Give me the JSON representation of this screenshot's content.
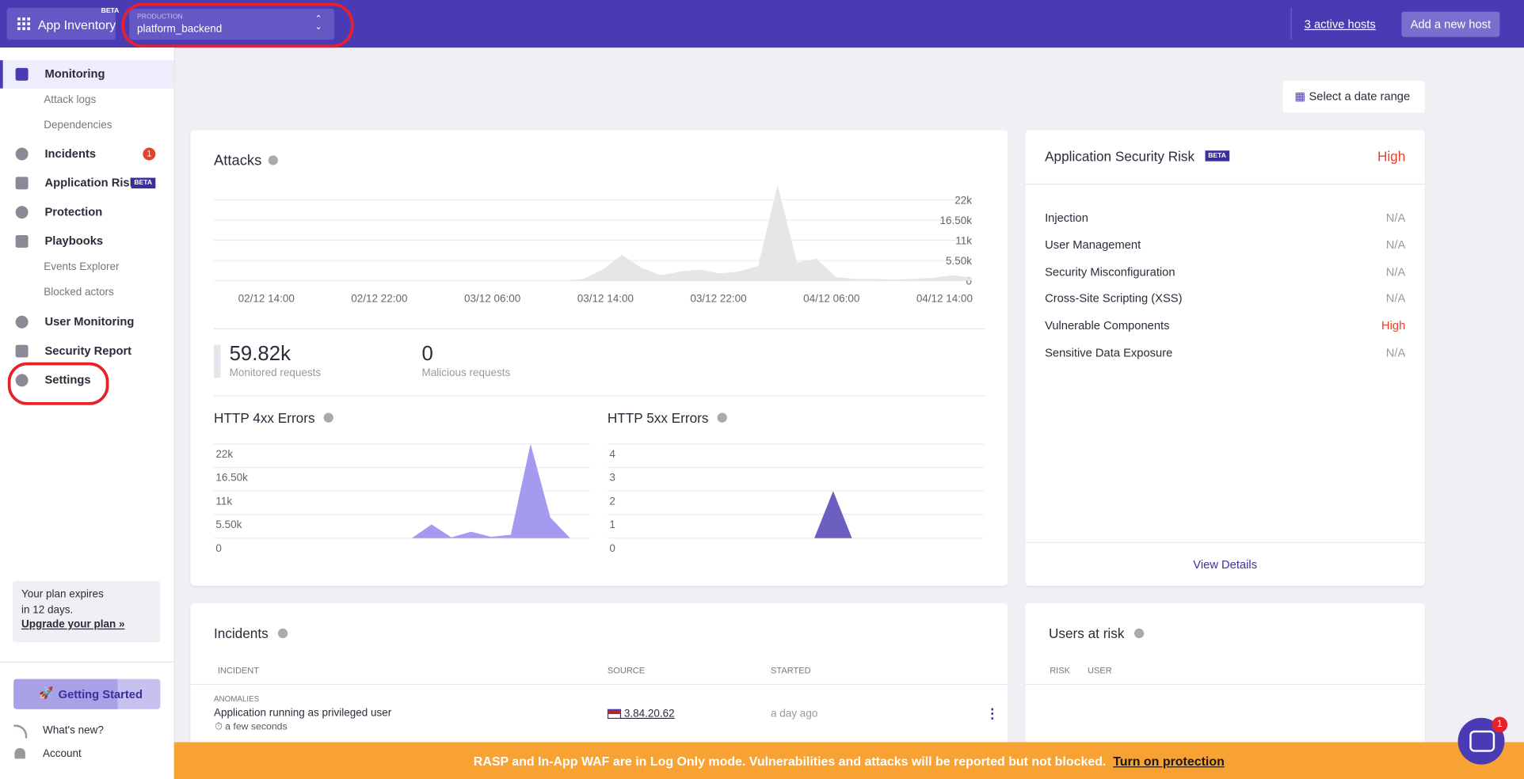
{
  "topbar": {
    "app": "App Inventory",
    "app_badge": "BETA",
    "env_label": "PRODUCTION",
    "env": "platform_backend",
    "hosts": "3 active hosts",
    "add_host": "Add a new host"
  },
  "sidebar": {
    "items": [
      {
        "label": "Monitoring",
        "active": true
      },
      {
        "label": "Attack logs",
        "sub": true
      },
      {
        "label": "Dependencies",
        "sub": true
      },
      {
        "label": "Incidents",
        "badge": "1"
      },
      {
        "label": "Application Risk",
        "beta": "BETA"
      },
      {
        "label": "Protection"
      },
      {
        "label": "Playbooks"
      },
      {
        "label": "Events Explorer",
        "sub": true
      },
      {
        "label": "Blocked actors",
        "sub": true
      },
      {
        "label": "User Monitoring"
      },
      {
        "label": "Security Report"
      },
      {
        "label": "Settings"
      }
    ],
    "plan": {
      "line1": "Your plan expires",
      "line2": "in 12 days.",
      "link": "Upgrade your plan »"
    },
    "getting_started": "Getting Started",
    "whats_new": "What's new?",
    "account": "Account"
  },
  "date_range": "Select a date range",
  "attacks": {
    "title": "Attacks",
    "xticks": [
      "02/12 14:00",
      "02/12 22:00",
      "03/12 06:00",
      "03/12 14:00",
      "03/12 22:00",
      "04/12 06:00",
      "04/12 14:00"
    ],
    "ylim": [
      0,
      27000
    ],
    "yticks": [
      0,
      {
        "value": 5500,
        "label": "5.50k"
      },
      {
        "value": 11000,
        "label": "11k"
      },
      {
        "value": 16500,
        "label": "16.50k"
      },
      {
        "value": 22000,
        "label": "22k"
      }
    ],
    "values": [
      0,
      0,
      0,
      0,
      0,
      0,
      0,
      0,
      0,
      0,
      0,
      0,
      0,
      0,
      0,
      0,
      0,
      0,
      0,
      500,
      3000,
      7000,
      3500,
      1500,
      2500,
      3000,
      2000,
      2500,
      4000,
      26000,
      5000,
      6000,
      1000,
      500,
      500,
      300,
      500,
      800,
      1500,
      800
    ],
    "stats": [
      {
        "value": "59.82k",
        "label": "Monitored requests"
      },
      {
        "value": "0",
        "label": "Malicious requests"
      }
    ]
  },
  "http4xx": {
    "title": "HTTP 4xx Errors",
    "ylim": [
      0,
      22000
    ],
    "yticks": [
      0,
      {
        "value": 5500,
        "label": "5.50k"
      },
      {
        "value": 11000,
        "label": "11k"
      },
      {
        "value": 16500,
        "label": "16.50k"
      },
      {
        "value": 22000,
        "label": "22k"
      }
    ],
    "values": [
      0,
      0,
      0,
      0,
      0,
      0,
      0,
      0,
      0,
      0,
      0,
      3200,
      200,
      1500,
      300,
      800,
      22000,
      4800,
      0,
      0
    ]
  },
  "http5xx": {
    "title": "HTTP 5xx Errors",
    "ylim": [
      0,
      4
    ],
    "yticks": [
      0,
      1,
      2,
      3,
      4
    ],
    "values": [
      0,
      0,
      0,
      0,
      0,
      0,
      0,
      0,
      0,
      0,
      0,
      0,
      2,
      0,
      0,
      0,
      0,
      0,
      0,
      0,
      0
    ]
  },
  "risk": {
    "title": "Application Security Risk",
    "badge": "BETA",
    "level": "High",
    "rows": [
      {
        "name": "Injection",
        "value": "N/A"
      },
      {
        "name": "User Management",
        "value": "N/A"
      },
      {
        "name": "Security Misconfiguration",
        "value": "N/A"
      },
      {
        "name": "Cross-Site Scripting (XSS)",
        "value": "N/A"
      },
      {
        "name": "Vulnerable Components",
        "value": "High"
      },
      {
        "name": "Sensitive Data Exposure",
        "value": "N/A"
      }
    ],
    "view": "View Details"
  },
  "incidents": {
    "title": "Incidents",
    "columns": [
      "INCIDENT",
      "SOURCE",
      "STARTED"
    ],
    "rows": [
      {
        "category": "ANOMALIES",
        "name": "Application running as privileged user",
        "time": "a few seconds",
        "source": "3.84.20.62",
        "started": "a day ago"
      }
    ]
  },
  "users": {
    "title": "Users at risk",
    "columns": [
      "RISK",
      "USER"
    ]
  },
  "banner": {
    "text": "RASP and In-App WAF are in Log Only mode. Vulnerabilities and attacks will be reported but not blocked.",
    "link": "Turn on protection"
  },
  "chat_badge": "1"
}
